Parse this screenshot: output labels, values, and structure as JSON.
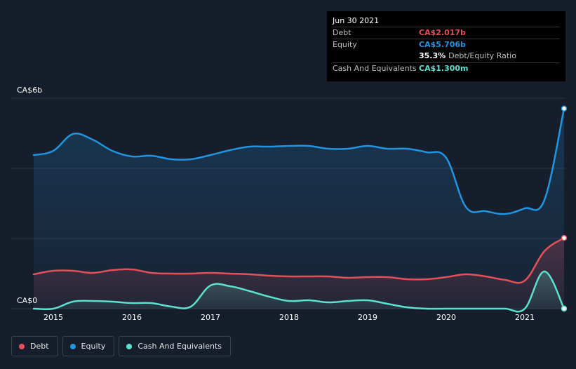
{
  "tooltip": {
    "date": "Jun 30 2021",
    "debt_label": "Debt",
    "debt_value": "CA$2.017b",
    "equity_label": "Equity",
    "equity_value": "CA$5.706b",
    "ratio_value": "35.3%",
    "ratio_label": "Debt/Equity Ratio",
    "cash_label": "Cash And Equivalents",
    "cash_value": "CA$1.300m"
  },
  "legend": [
    {
      "label": "Debt",
      "color": "#e4505a"
    },
    {
      "label": "Equity",
      "color": "#2394df"
    },
    {
      "label": "Cash And Equivalents",
      "color": "#5ce1cf"
    }
  ],
  "colors": {
    "background": "#161d2b",
    "debt": "#e4505a",
    "equity": "#2394df",
    "cash": "#5ce1cf",
    "grid": "#2c3444"
  },
  "chart_data": {
    "type": "area",
    "y_unit": "CA$ billions",
    "ylim": [
      0,
      6
    ],
    "y_tick_labels": [
      {
        "value": 6,
        "label": "CA$6b"
      },
      {
        "value": 0,
        "label": "CA$0"
      }
    ],
    "x_ticks": [
      "2015",
      "2016",
      "2017",
      "2018",
      "2019",
      "2020",
      "2021"
    ],
    "xlim": [
      2014.75,
      2021.5
    ],
    "grid": true,
    "legend_position": "bottom-left",
    "series": [
      {
        "name": "Equity",
        "color": "#2394df",
        "points": [
          [
            2014.75,
            4.38
          ],
          [
            2015.0,
            4.5
          ],
          [
            2015.25,
            4.98
          ],
          [
            2015.5,
            4.82
          ],
          [
            2015.75,
            4.5
          ],
          [
            2016.0,
            4.34
          ],
          [
            2016.25,
            4.36
          ],
          [
            2016.5,
            4.26
          ],
          [
            2016.75,
            4.26
          ],
          [
            2017.0,
            4.38
          ],
          [
            2017.25,
            4.52
          ],
          [
            2017.5,
            4.62
          ],
          [
            2017.75,
            4.62
          ],
          [
            2018.0,
            4.64
          ],
          [
            2018.25,
            4.64
          ],
          [
            2018.5,
            4.56
          ],
          [
            2018.75,
            4.56
          ],
          [
            2019.0,
            4.64
          ],
          [
            2019.25,
            4.56
          ],
          [
            2019.5,
            4.56
          ],
          [
            2019.75,
            4.46
          ],
          [
            2020.0,
            4.3
          ],
          [
            2020.25,
            2.9
          ],
          [
            2020.5,
            2.78
          ],
          [
            2020.75,
            2.7
          ],
          [
            2021.0,
            2.86
          ],
          [
            2021.25,
            3.1
          ],
          [
            2021.5,
            5.706
          ]
        ]
      },
      {
        "name": "Debt",
        "color": "#e4505a",
        "points": [
          [
            2014.75,
            0.98
          ],
          [
            2015.0,
            1.08
          ],
          [
            2015.25,
            1.08
          ],
          [
            2015.5,
            1.02
          ],
          [
            2015.75,
            1.1
          ],
          [
            2016.0,
            1.12
          ],
          [
            2016.25,
            1.02
          ],
          [
            2016.5,
            1.0
          ],
          [
            2016.75,
            1.0
          ],
          [
            2017.0,
            1.02
          ],
          [
            2017.25,
            1.0
          ],
          [
            2017.5,
            0.98
          ],
          [
            2017.75,
            0.94
          ],
          [
            2018.0,
            0.92
          ],
          [
            2018.25,
            0.92
          ],
          [
            2018.5,
            0.92
          ],
          [
            2018.75,
            0.88
          ],
          [
            2019.0,
            0.9
          ],
          [
            2019.25,
            0.9
          ],
          [
            2019.5,
            0.84
          ],
          [
            2019.75,
            0.84
          ],
          [
            2020.0,
            0.9
          ],
          [
            2020.25,
            0.98
          ],
          [
            2020.5,
            0.92
          ],
          [
            2020.75,
            0.82
          ],
          [
            2021.0,
            0.8
          ],
          [
            2021.25,
            1.64
          ],
          [
            2021.5,
            2.017
          ]
        ]
      },
      {
        "name": "Cash And Equivalents",
        "color": "#5ce1cf",
        "points": [
          [
            2014.75,
            0.0
          ],
          [
            2015.0,
            0.0
          ],
          [
            2015.25,
            0.2
          ],
          [
            2015.5,
            0.22
          ],
          [
            2015.75,
            0.2
          ],
          [
            2016.0,
            0.16
          ],
          [
            2016.25,
            0.16
          ],
          [
            2016.5,
            0.06
          ],
          [
            2016.75,
            0.06
          ],
          [
            2017.0,
            0.66
          ],
          [
            2017.25,
            0.64
          ],
          [
            2017.5,
            0.5
          ],
          [
            2017.75,
            0.34
          ],
          [
            2018.0,
            0.22
          ],
          [
            2018.25,
            0.24
          ],
          [
            2018.5,
            0.18
          ],
          [
            2018.75,
            0.22
          ],
          [
            2019.0,
            0.24
          ],
          [
            2019.25,
            0.14
          ],
          [
            2019.5,
            0.04
          ],
          [
            2019.75,
            0.0
          ],
          [
            2020.0,
            0.0
          ],
          [
            2020.25,
            0.0
          ],
          [
            2020.5,
            0.0
          ],
          [
            2020.75,
            0.0
          ],
          [
            2021.0,
            0.0
          ],
          [
            2021.25,
            1.06
          ],
          [
            2021.5,
            0.0013
          ]
        ]
      }
    ]
  }
}
